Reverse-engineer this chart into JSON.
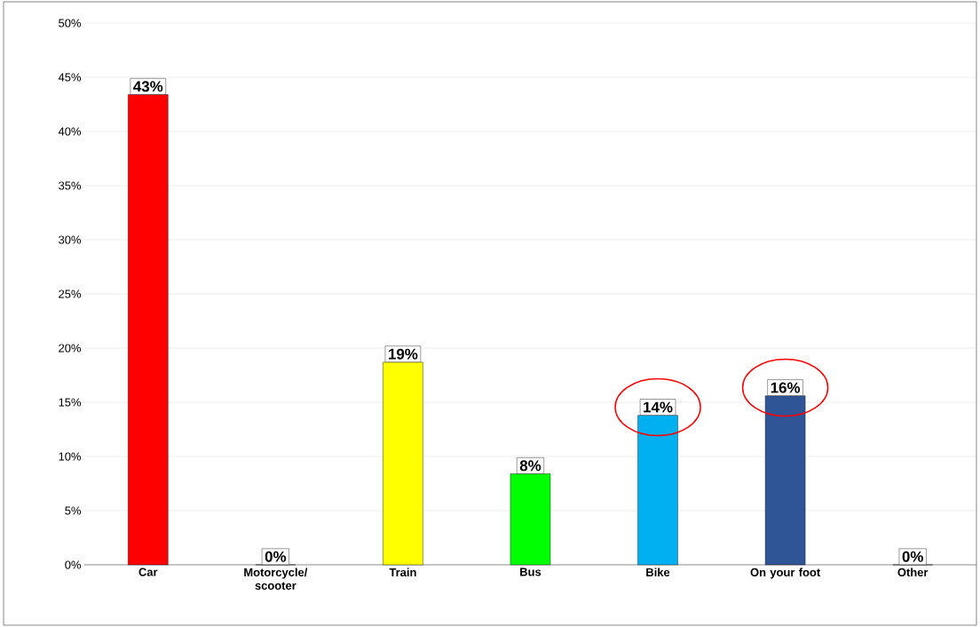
{
  "chart_data": {
    "type": "bar",
    "categories": [
      "Car",
      "Motorcycle/ scooter",
      "Train",
      "Bus",
      "Bike",
      "On your foot",
      "Other"
    ],
    "values": [
      43.4,
      0,
      18.7,
      8.4,
      13.8,
      15.6,
      0
    ],
    "colors": [
      "#ff0000",
      "#7f7f7f",
      "#ffff00",
      "#00ff00",
      "#00b0f0",
      "#2f5597",
      "#7f7f7f"
    ],
    "value_labels": [
      "43%",
      "0%",
      "19%",
      "8%",
      "14%",
      "16%",
      "0%"
    ],
    "ylim": [
      0,
      50
    ],
    "yticks": [
      {
        "value": 0,
        "label": "0%"
      },
      {
        "value": 5,
        "label": "5%"
      },
      {
        "value": 10,
        "label": "10%"
      },
      {
        "value": 15,
        "label": "15%"
      },
      {
        "value": 20,
        "label": "20%"
      },
      {
        "value": 25,
        "label": "25%"
      },
      {
        "value": 30,
        "label": "30%"
      },
      {
        "value": 35,
        "label": "35%"
      },
      {
        "value": 40,
        "label": "40%"
      },
      {
        "value": 45,
        "label": "45%"
      },
      {
        "value": 50,
        "label": "50%"
      }
    ],
    "grid": "y"
  }
}
